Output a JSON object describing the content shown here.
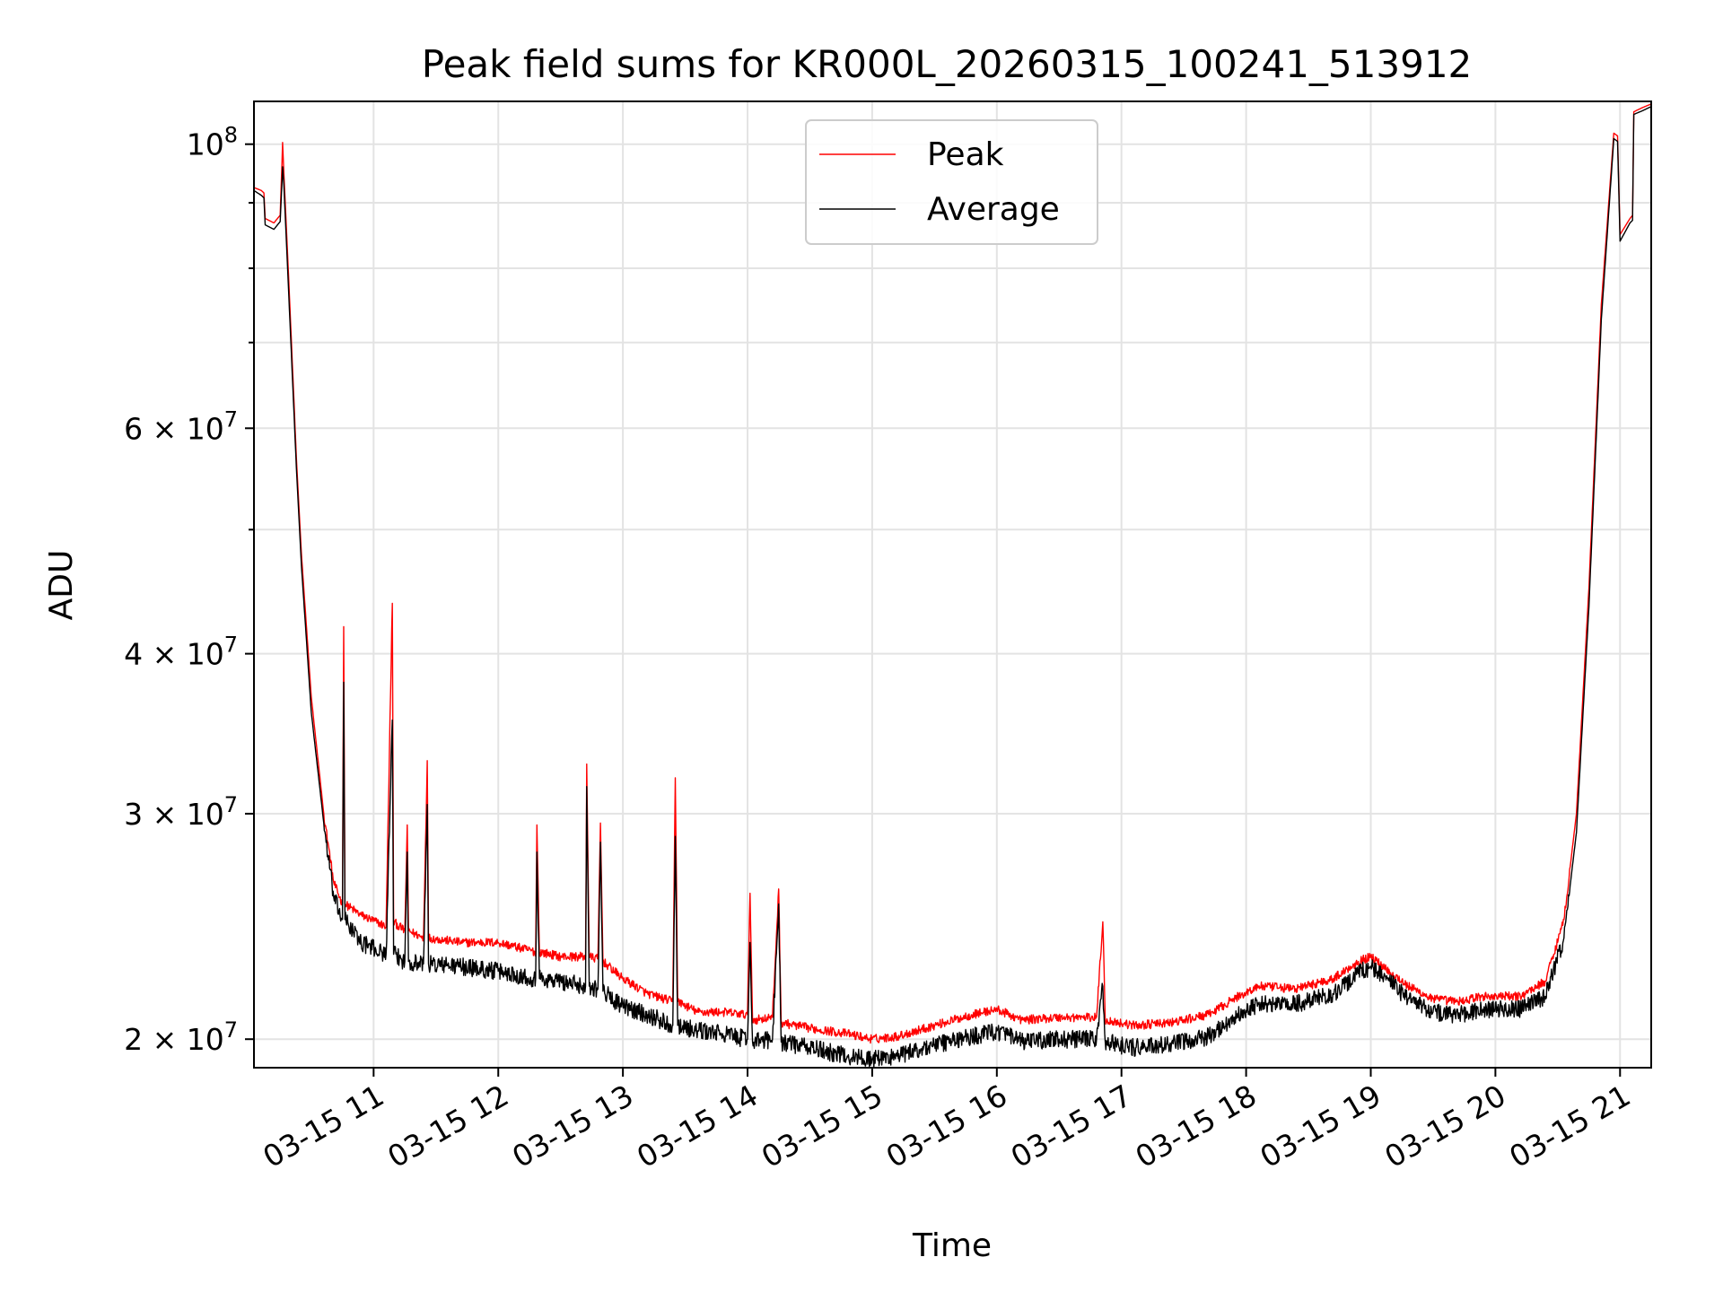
{
  "chart_data": {
    "type": "line",
    "title": "Peak field sums for KR000L_20260315_100241_513912",
    "xlabel": "Time",
    "ylabel": "ADU",
    "yscale": "log",
    "xlim": [
      10.04,
      21.25
    ],
    "ylim": [
      19000000,
      108000000
    ],
    "grid": true,
    "legend_position": "top-center",
    "x_ticks": [
      {
        "value": 11,
        "label": "03-15 11"
      },
      {
        "value": 12,
        "label": "03-15 12"
      },
      {
        "value": 13,
        "label": "03-15 13"
      },
      {
        "value": 14,
        "label": "03-15 14"
      },
      {
        "value": 15,
        "label": "03-15 15"
      },
      {
        "value": 16,
        "label": "03-15 16"
      },
      {
        "value": 17,
        "label": "03-15 17"
      },
      {
        "value": 18,
        "label": "03-15 18"
      },
      {
        "value": 19,
        "label": "03-15 19"
      },
      {
        "value": 20,
        "label": "03-15 20"
      },
      {
        "value": 21,
        "label": "03-15 21"
      }
    ],
    "y_ticks": [
      {
        "value": 100000000,
        "base": "10",
        "exp": "8"
      },
      {
        "value": 60000000,
        "base": "6 × 10",
        "exp": "7"
      },
      {
        "value": 40000000,
        "base": "4 × 10",
        "exp": "7"
      },
      {
        "value": 30000000,
        "base": "3 × 10",
        "exp": "7"
      },
      {
        "value": 20000000,
        "base": "2 × 10",
        "exp": "7"
      }
    ],
    "y_minor_ticks": [
      50000000,
      70000000,
      80000000,
      90000000
    ],
    "series": [
      {
        "name": "Peak",
        "color": "#ff0000",
        "points": [
          [
            10.04,
            92500000
          ],
          [
            10.1,
            92000000
          ],
          [
            10.12,
            91600000
          ],
          [
            10.13,
            87500000
          ],
          [
            10.2,
            86800000
          ],
          [
            10.25,
            88000000
          ],
          [
            10.27,
            100300000
          ],
          [
            10.28,
            95000000
          ],
          [
            10.32,
            78000000
          ],
          [
            10.38,
            57000000
          ],
          [
            10.42,
            48000000
          ],
          [
            10.5,
            37000000
          ],
          [
            10.6,
            30000000
          ],
          [
            10.68,
            26500000
          ],
          [
            10.75,
            25500000
          ],
          [
            10.76,
            42000000
          ],
          [
            10.77,
            25500000
          ],
          [
            10.9,
            25000000
          ],
          [
            11.1,
            24500000
          ],
          [
            11.15,
            43800000
          ],
          [
            11.16,
            24700000
          ],
          [
            11.25,
            24300000
          ],
          [
            11.27,
            29400000
          ],
          [
            11.28,
            24300000
          ],
          [
            11.4,
            24000000
          ],
          [
            11.43,
            33000000
          ],
          [
            11.44,
            24000000
          ],
          [
            11.7,
            23800000
          ],
          [
            12.0,
            23800000
          ],
          [
            12.3,
            23400000
          ],
          [
            12.31,
            29400000
          ],
          [
            12.33,
            23400000
          ],
          [
            12.5,
            23200000
          ],
          [
            12.7,
            23200000
          ],
          [
            12.71,
            32800000
          ],
          [
            12.73,
            23200000
          ],
          [
            12.8,
            23100000
          ],
          [
            12.82,
            29500000
          ],
          [
            12.84,
            23000000
          ],
          [
            13.0,
            22300000
          ],
          [
            13.2,
            21700000
          ],
          [
            13.4,
            21400000
          ],
          [
            13.42,
            32000000
          ],
          [
            13.44,
            21400000
          ],
          [
            13.6,
            21000000
          ],
          [
            13.8,
            21000000
          ],
          [
            14.0,
            20900000
          ],
          [
            14.02,
            26000000
          ],
          [
            14.04,
            20700000
          ],
          [
            14.2,
            20800000
          ],
          [
            14.25,
            26200000
          ],
          [
            14.27,
            20600000
          ],
          [
            14.5,
            20400000
          ],
          [
            14.8,
            20200000
          ],
          [
            15.0,
            20000000
          ],
          [
            15.2,
            20100000
          ],
          [
            15.5,
            20500000
          ],
          [
            15.8,
            20900000
          ],
          [
            16.0,
            21100000
          ],
          [
            16.2,
            20700000
          ],
          [
            16.5,
            20800000
          ],
          [
            16.8,
            20800000
          ],
          [
            16.85,
            24700000
          ],
          [
            16.87,
            20700000
          ],
          [
            17.1,
            20500000
          ],
          [
            17.4,
            20600000
          ],
          [
            17.7,
            20900000
          ],
          [
            17.9,
            21500000
          ],
          [
            18.1,
            22000000
          ],
          [
            18.4,
            21900000
          ],
          [
            18.7,
            22300000
          ],
          [
            18.9,
            23000000
          ],
          [
            19.0,
            23200000
          ],
          [
            19.15,
            22600000
          ],
          [
            19.3,
            22000000
          ],
          [
            19.5,
            21500000
          ],
          [
            19.7,
            21400000
          ],
          [
            19.9,
            21600000
          ],
          [
            20.2,
            21600000
          ],
          [
            20.4,
            22200000
          ],
          [
            20.55,
            24800000
          ],
          [
            20.65,
            30000000
          ],
          [
            20.75,
            45000000
          ],
          [
            20.85,
            75000000
          ],
          [
            20.95,
            102000000
          ],
          [
            20.98,
            101500000
          ],
          [
            21.0,
            85000000
          ],
          [
            21.08,
            87500000
          ],
          [
            21.1,
            88000000
          ],
          [
            21.11,
            106000000
          ],
          [
            21.18,
            106800000
          ],
          [
            21.25,
            107500000
          ]
        ]
      },
      {
        "name": "Average",
        "color": "#000000",
        "points": [
          [
            10.04,
            92000000
          ],
          [
            10.1,
            91200000
          ],
          [
            10.12,
            90800000
          ],
          [
            10.13,
            86500000
          ],
          [
            10.2,
            85800000
          ],
          [
            10.25,
            87000000
          ],
          [
            10.27,
            96000000
          ],
          [
            10.28,
            93000000
          ],
          [
            10.32,
            76000000
          ],
          [
            10.38,
            56000000
          ],
          [
            10.42,
            47000000
          ],
          [
            10.5,
            36000000
          ],
          [
            10.6,
            29500000
          ],
          [
            10.68,
            25800000
          ],
          [
            10.75,
            24800000
          ],
          [
            10.76,
            38000000
          ],
          [
            10.77,
            24800000
          ],
          [
            10.9,
            23800000
          ],
          [
            11.1,
            23300000
          ],
          [
            11.15,
            35500000
          ],
          [
            11.16,
            23300000
          ],
          [
            11.25,
            23000000
          ],
          [
            11.27,
            28000000
          ],
          [
            11.28,
            23000000
          ],
          [
            11.4,
            22900000
          ],
          [
            11.43,
            30500000
          ],
          [
            11.44,
            22900000
          ],
          [
            11.7,
            22800000
          ],
          [
            12.0,
            22600000
          ],
          [
            12.3,
            22300000
          ],
          [
            12.31,
            28000000
          ],
          [
            12.33,
            22300000
          ],
          [
            12.5,
            22200000
          ],
          [
            12.7,
            22000000
          ],
          [
            12.71,
            31500000
          ],
          [
            12.73,
            22000000
          ],
          [
            12.8,
            21900000
          ],
          [
            12.82,
            28500000
          ],
          [
            12.84,
            21800000
          ],
          [
            13.0,
            21200000
          ],
          [
            13.2,
            20900000
          ],
          [
            13.4,
            20500000
          ],
          [
            13.42,
            28800000
          ],
          [
            13.44,
            20500000
          ],
          [
            13.6,
            20300000
          ],
          [
            13.8,
            20200000
          ],
          [
            14.0,
            20000000
          ],
          [
            14.02,
            23800000
          ],
          [
            14.04,
            19900000
          ],
          [
            14.2,
            20000000
          ],
          [
            14.25,
            25500000
          ],
          [
            14.27,
            19900000
          ],
          [
            14.5,
            19700000
          ],
          [
            14.8,
            19400000
          ],
          [
            15.0,
            19300000
          ],
          [
            15.2,
            19400000
          ],
          [
            15.5,
            19800000
          ],
          [
            15.8,
            20100000
          ],
          [
            16.0,
            20300000
          ],
          [
            16.2,
            19900000
          ],
          [
            16.5,
            20000000
          ],
          [
            16.8,
            20000000
          ],
          [
            16.85,
            22000000
          ],
          [
            16.87,
            19900000
          ],
          [
            17.1,
            19700000
          ],
          [
            17.4,
            19800000
          ],
          [
            17.7,
            20100000
          ],
          [
            17.9,
            20800000
          ],
          [
            18.1,
            21300000
          ],
          [
            18.4,
            21300000
          ],
          [
            18.7,
            21700000
          ],
          [
            18.9,
            22500000
          ],
          [
            19.0,
            22800000
          ],
          [
            19.15,
            22200000
          ],
          [
            19.3,
            21500000
          ],
          [
            19.5,
            21000000
          ],
          [
            19.7,
            20900000
          ],
          [
            19.9,
            21100000
          ],
          [
            20.2,
            21100000
          ],
          [
            20.4,
            21600000
          ],
          [
            20.55,
            24000000
          ],
          [
            20.65,
            29000000
          ],
          [
            20.75,
            43500000
          ],
          [
            20.85,
            73000000
          ],
          [
            20.95,
            101000000
          ],
          [
            20.98,
            100500000
          ],
          [
            21.0,
            84000000
          ],
          [
            21.08,
            86800000
          ],
          [
            21.1,
            87200000
          ],
          [
            21.11,
            105500000
          ],
          [
            21.18,
            106200000
          ],
          [
            21.25,
            107000000
          ]
        ]
      }
    ]
  }
}
